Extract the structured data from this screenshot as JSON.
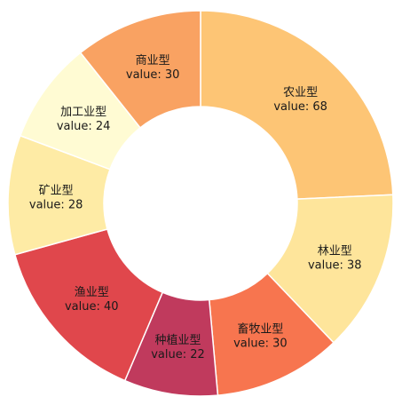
{
  "chart_data": {
    "type": "pie",
    "donut": true,
    "value_prefix": "value: ",
    "categories": [
      "农业型",
      "林业型",
      "畜牧业型",
      "种植业型",
      "渔业型",
      "矿业型",
      "加工业型",
      "商业型"
    ],
    "values": [
      68,
      38,
      30,
      22,
      40,
      28,
      24,
      30
    ],
    "colors": [
      "#FDC575",
      "#FEE59B",
      "#F7754F",
      "#C03A5D",
      "#E0474C",
      "#FEEBA5",
      "#FFFBD3",
      "#F9A262"
    ]
  }
}
